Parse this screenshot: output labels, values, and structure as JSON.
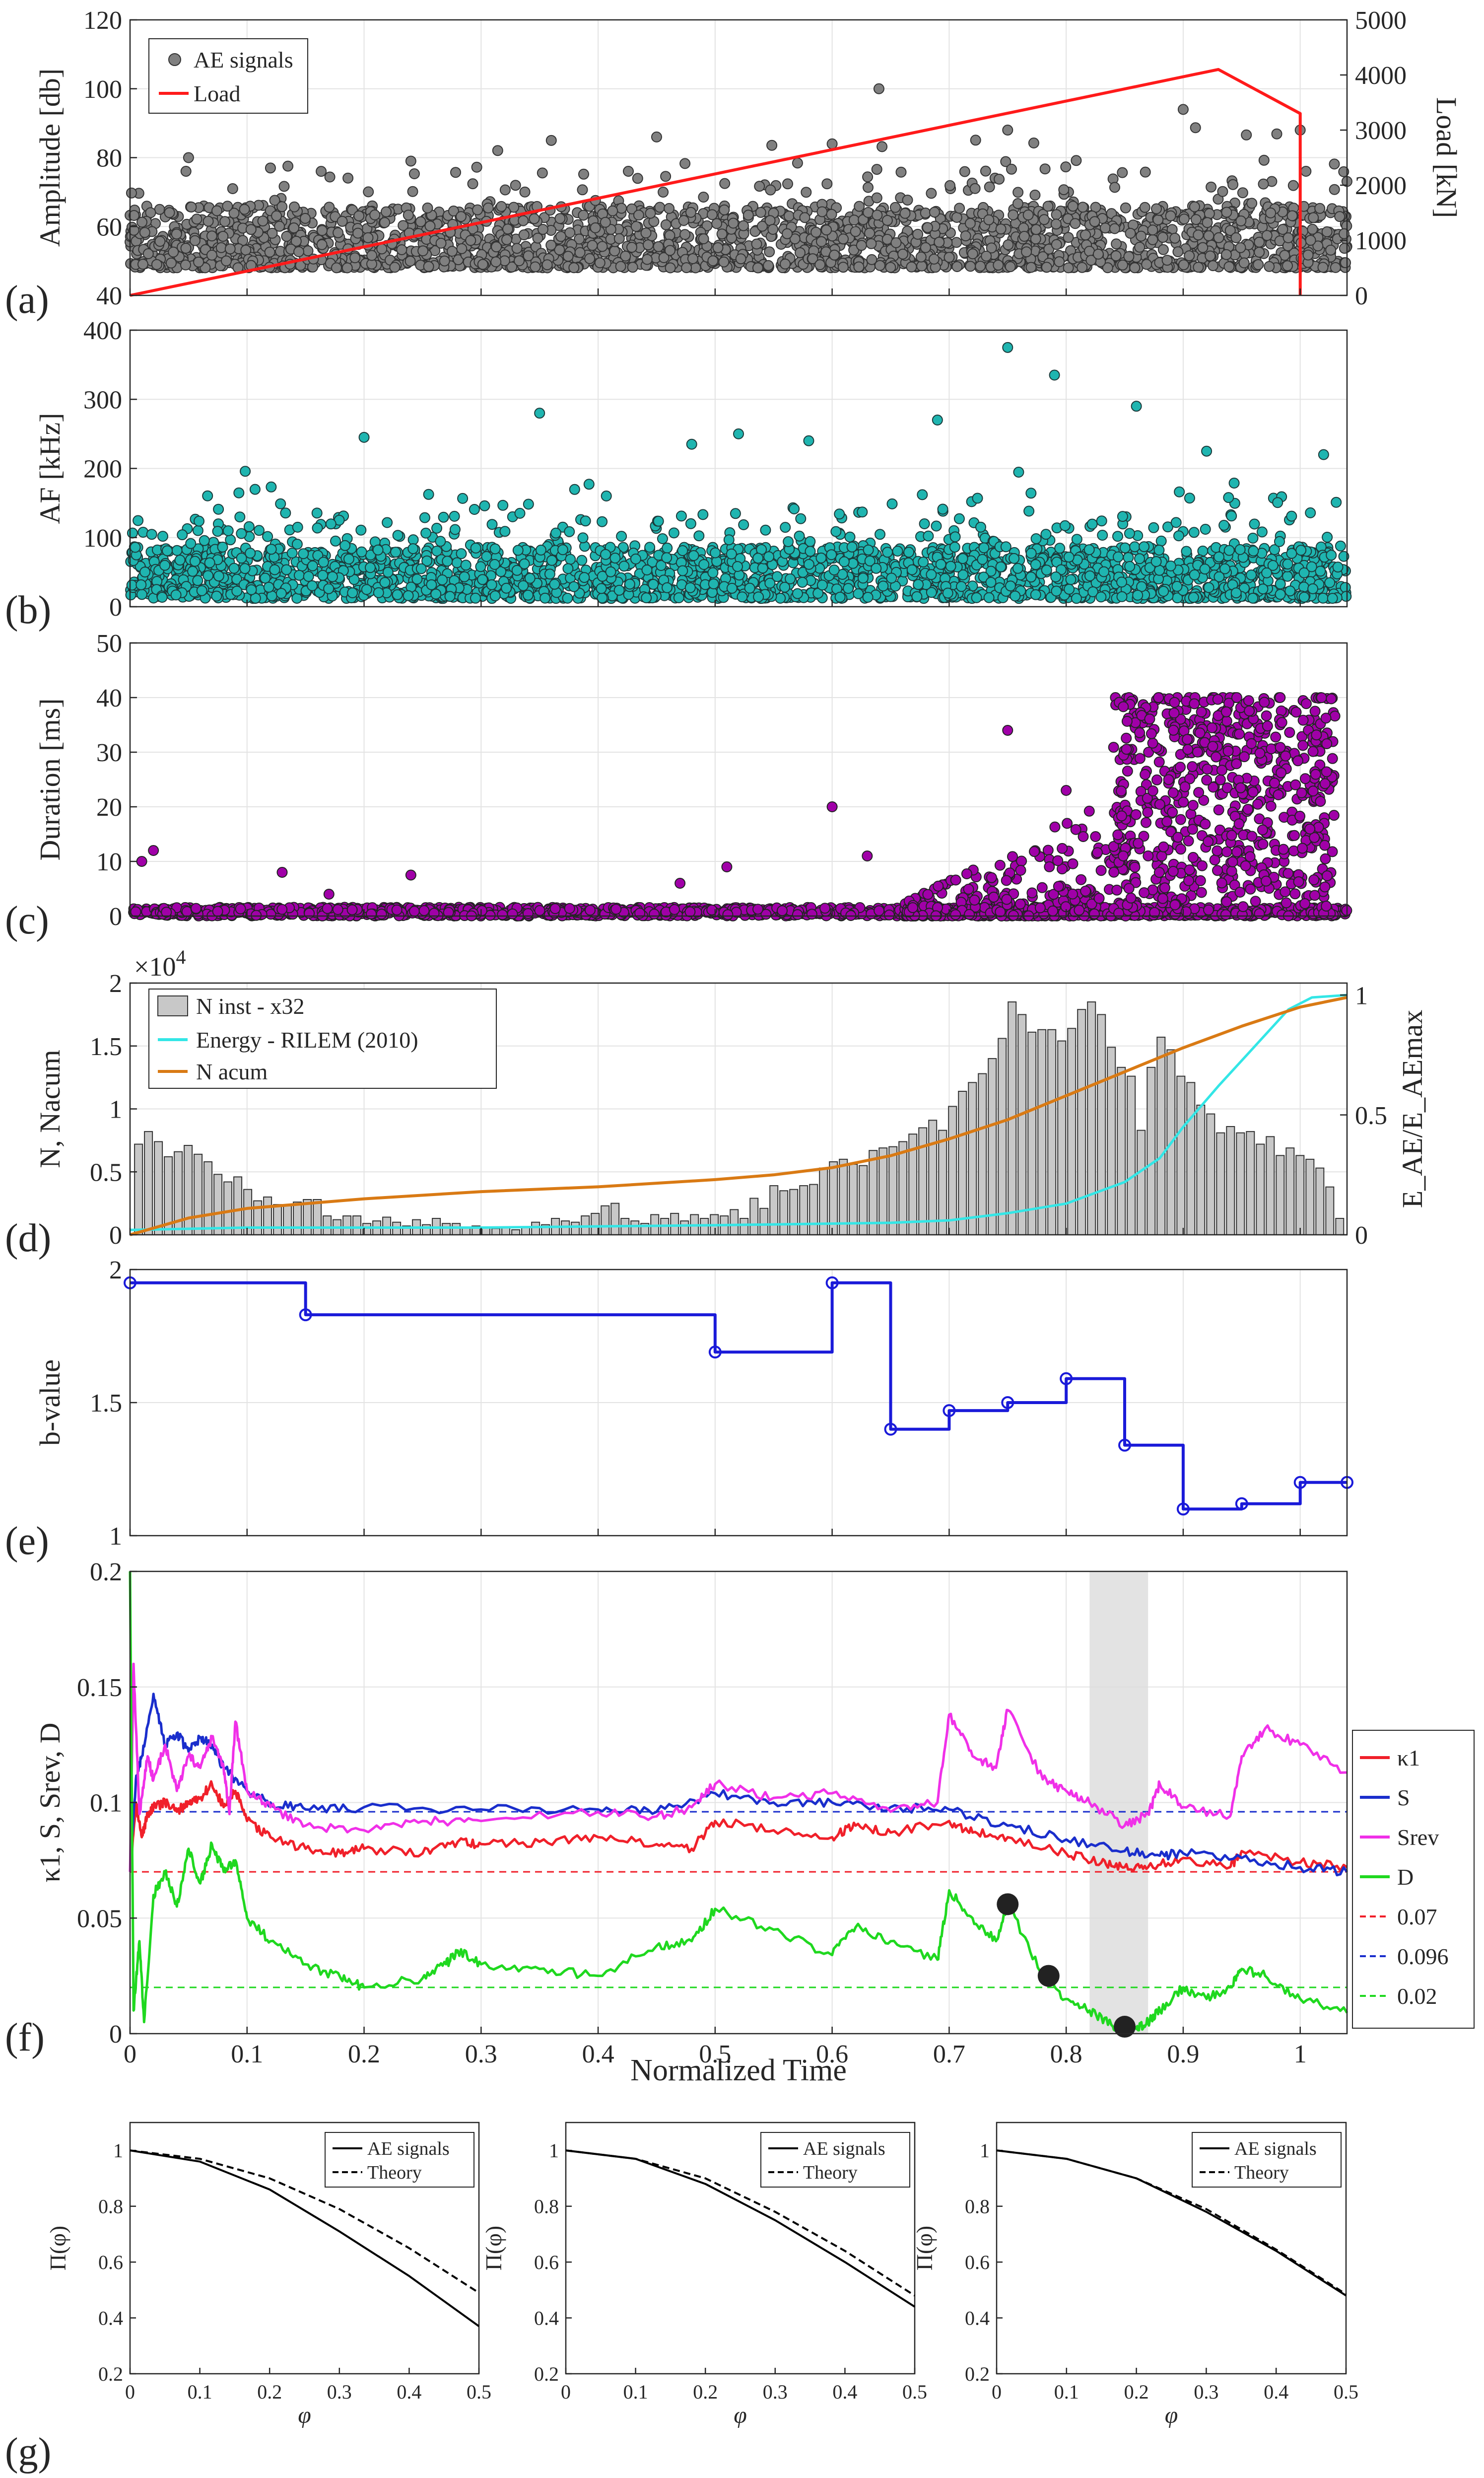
{
  "colors": {
    "ae_signals": "#808080",
    "af": "#1fb5b0",
    "duration": "#a000a8",
    "load": "#ff1a1a",
    "bars": "#c8c8c8",
    "energy": "#33e6e6",
    "nacum": "#d97a14",
    "bvalue": "#1a1ad9",
    "k1": "#f0202a",
    "S": "#1a2ecc",
    "Srev": "#f030e8",
    "D": "#1fd81f",
    "shade": "#d9d9d9",
    "marker": "#222222"
  },
  "chart_data": [
    {
      "id": "a",
      "type": "scatter",
      "panel_label": "(a)",
      "ylabel": "Amplitude [db]",
      "ylabel_right": "Load [kN]",
      "xlim": [
        0,
        1.04
      ],
      "ylim": [
        40,
        120
      ],
      "ylim_right": [
        0,
        5000
      ],
      "yticks": [
        "40",
        "60",
        "80",
        "100",
        "120"
      ],
      "yticks_right": [
        "0",
        "1000",
        "2000",
        "3000",
        "4000",
        "5000"
      ],
      "legend": [
        "AE signals",
        "Load"
      ],
      "series": [
        {
          "name": "AE signals",
          "distribution": {
            "baseline": [
              48,
              62
            ],
            "outliers_max": 100
          }
        },
        {
          "name": "Load",
          "axis": "right",
          "x": [
            0,
            0.93,
            1.0,
            1.0
          ],
          "y": [
            0,
            4100,
            3300,
            0
          ]
        }
      ]
    },
    {
      "id": "b",
      "type": "scatter",
      "panel_label": "(b)",
      "ylabel": "AF [kHz]",
      "xlim": [
        0,
        1.04
      ],
      "ylim": [
        0,
        400
      ],
      "yticks": [
        "0",
        "100",
        "200",
        "300",
        "400"
      ],
      "series": [
        {
          "name": "AF",
          "distribution": {
            "baseline": [
              10,
              90
            ],
            "outliers_max": 375
          }
        }
      ]
    },
    {
      "id": "c",
      "type": "scatter",
      "panel_label": "(c)",
      "ylabel": "Duration [ms]",
      "xlim": [
        0,
        1.04
      ],
      "ylim": [
        0,
        50
      ],
      "yticks": [
        "0",
        "10",
        "20",
        "30",
        "40",
        "50"
      ],
      "series": [
        {
          "name": "Duration",
          "distribution": {
            "baseline": [
              0,
              2
            ],
            "cluster_start": 0.67,
            "dense_start": 0.85,
            "max": 40
          }
        }
      ]
    },
    {
      "id": "d",
      "type": "bar",
      "panel_label": "(d)",
      "ylabel": "N, Nacum",
      "ylabel_right": "E_AE/E_AEmax",
      "multiplier": "×10",
      "multiplier_exp": "4",
      "xlim": [
        0,
        1.04
      ],
      "ylim": [
        0,
        20000
      ],
      "ylim_right": [
        0,
        1.05
      ],
      "yticks": [
        "0",
        "0.5",
        "1",
        "1.5",
        "2"
      ],
      "yticks_right": [
        "0",
        "0.5",
        "1"
      ],
      "legend": [
        "N inst - x32",
        "Energy - RILEM (2010)",
        "N acum"
      ],
      "bars": [
        7200,
        8200,
        7400,
        6200,
        6600,
        7100,
        6400,
        5800,
        4800,
        4200,
        4600,
        3600,
        2700,
        3000,
        2400,
        2300,
        2600,
        2800,
        2800,
        1500,
        1200,
        1500,
        1500,
        900,
        1100,
        1400,
        1000,
        700,
        1200,
        800,
        1300,
        900,
        900,
        600,
        700,
        600,
        500,
        600,
        400,
        600,
        1000,
        800,
        1300,
        1100,
        1000,
        1500,
        1700,
        2300,
        2500,
        1300,
        1100,
        900,
        1600,
        1300,
        1700,
        1100,
        1600,
        1300,
        1600,
        1500,
        2000,
        1300,
        2900,
        2100,
        3900,
        3500,
        3600,
        3900,
        4000,
        5300,
        5800,
        6000,
        5600,
        5500,
        6700,
        6900,
        7000,
        7400,
        8000,
        8500,
        9100,
        8300,
        10200,
        11400,
        12100,
        12800,
        14000,
        15600,
        18500,
        17500,
        16100,
        16300,
        16300,
        15400,
        16400,
        17900,
        18500,
        17500,
        14900,
        13300,
        12600,
        8300,
        13300,
        15700,
        14700,
        12600,
        12100,
        10300,
        9600,
        8100,
        8600,
        8100,
        8200,
        7200,
        7800,
        6300,
        6900,
        6300,
        6000,
        5300,
        3800,
        1300
      ],
      "series": [
        {
          "name": "Energy - RILEM (2010)",
          "axis": "right",
          "x": [
            0,
            0.1,
            0.3,
            0.5,
            0.65,
            0.7,
            0.75,
            0.8,
            0.85,
            0.88,
            0.9,
            0.93,
            0.96,
            0.99,
            1.01,
            1.04
          ],
          "y": [
            0.02,
            0.03,
            0.03,
            0.04,
            0.05,
            0.06,
            0.09,
            0.13,
            0.22,
            0.32,
            0.45,
            0.62,
            0.78,
            0.94,
            0.99,
            1.0
          ]
        },
        {
          "name": "N acum",
          "axis": "right",
          "x": [
            0,
            0.05,
            0.1,
            0.2,
            0.3,
            0.4,
            0.5,
            0.55,
            0.6,
            0.65,
            0.7,
            0.75,
            0.8,
            0.85,
            0.9,
            0.95,
            1.0,
            1.04
          ],
          "y": [
            0,
            0.07,
            0.11,
            0.15,
            0.18,
            0.2,
            0.23,
            0.25,
            0.28,
            0.33,
            0.4,
            0.48,
            0.58,
            0.68,
            0.78,
            0.87,
            0.95,
            0.99
          ]
        }
      ]
    },
    {
      "id": "e",
      "type": "line",
      "panel_label": "(e)",
      "ylabel": "b-value",
      "xlim": [
        0,
        1.04
      ],
      "ylim": [
        1,
        2
      ],
      "yticks": [
        "1",
        "1.5",
        "2"
      ],
      "series": [
        {
          "name": "b-value",
          "step": "pre",
          "x": [
            0,
            0.15,
            0.5,
            0.6,
            0.65,
            0.7,
            0.75,
            0.8,
            0.85,
            0.9,
            0.95,
            1.0,
            1.04
          ],
          "y": [
            1.95,
            1.83,
            1.69,
            1.95,
            1.4,
            1.47,
            1.5,
            1.59,
            1.34,
            1.1,
            1.12,
            1.2,
            1.2
          ]
        }
      ]
    },
    {
      "id": "f",
      "type": "line",
      "panel_label": "(f)",
      "ylabel": "κ1, S, Srev, D",
      "xlabel": "Normalized Time",
      "xlim": [
        0,
        1.04
      ],
      "ylim": [
        0,
        0.2
      ],
      "xticks": [
        "0",
        "0.1",
        "0.2",
        "0.3",
        "0.4",
        "0.5",
        "0.6",
        "0.7",
        "0.8",
        "0.9",
        "1"
      ],
      "yticks": [
        "0",
        "0.05",
        "0.1",
        "0.15",
        "0.2"
      ],
      "legend": [
        "κ1",
        "S",
        "Srev",
        "D",
        "0.07",
        "0.096",
        "0.02"
      ],
      "shaded_region": [
        0.82,
        0.87
      ],
      "thresholds": {
        "k1": 0.07,
        "S": 0.096,
        "D": 0.02
      },
      "series": [
        {
          "name": "κ1",
          "x": [
            0,
            0.005,
            0.01,
            0.015,
            0.02,
            0.03,
            0.04,
            0.05,
            0.06,
            0.07,
            0.08,
            0.09,
            0.1,
            0.12,
            0.15,
            0.18,
            0.2,
            0.25,
            0.28,
            0.3,
            0.35,
            0.4,
            0.45,
            0.48,
            0.5,
            0.55,
            0.6,
            0.62,
            0.65,
            0.7,
            0.72,
            0.75,
            0.8,
            0.83,
            0.85,
            0.87,
            0.9,
            0.94,
            0.95,
            1.0,
            1.04
          ],
          "y": [
            0.07,
            0.1,
            0.085,
            0.095,
            0.098,
            0.1,
            0.096,
            0.1,
            0.102,
            0.108,
            0.098,
            0.105,
            0.092,
            0.085,
            0.08,
            0.078,
            0.08,
            0.078,
            0.083,
            0.082,
            0.083,
            0.085,
            0.082,
            0.08,
            0.092,
            0.088,
            0.085,
            0.09,
            0.087,
            0.092,
            0.087,
            0.085,
            0.078,
            0.074,
            0.072,
            0.072,
            0.076,
            0.072,
            0.079,
            0.074,
            0.072
          ]
        },
        {
          "name": "S",
          "x": [
            0,
            0.005,
            0.01,
            0.02,
            0.03,
            0.04,
            0.05,
            0.06,
            0.07,
            0.08,
            0.1,
            0.12,
            0.15,
            0.2,
            0.3,
            0.4,
            0.45,
            0.5,
            0.55,
            0.6,
            0.65,
            0.7,
            0.75,
            0.8,
            0.85,
            0.88,
            0.9,
            0.95,
            1.0,
            1.04
          ],
          "y": [
            0.07,
            0.11,
            0.12,
            0.147,
            0.125,
            0.13,
            0.122,
            0.128,
            0.125,
            0.115,
            0.105,
            0.1,
            0.097,
            0.098,
            0.097,
            0.097,
            0.096,
            0.104,
            0.1,
            0.1,
            0.098,
            0.097,
            0.09,
            0.084,
            0.079,
            0.077,
            0.078,
            0.076,
            0.072,
            0.07
          ]
        },
        {
          "name": "Srev",
          "x": [
            0,
            0.003,
            0.008,
            0.015,
            0.02,
            0.03,
            0.04,
            0.05,
            0.06,
            0.07,
            0.08,
            0.085,
            0.09,
            0.1,
            0.12,
            0.15,
            0.2,
            0.25,
            0.3,
            0.4,
            0.45,
            0.48,
            0.5,
            0.55,
            0.6,
            0.65,
            0.69,
            0.7,
            0.72,
            0.74,
            0.75,
            0.78,
            0.8,
            0.82,
            0.85,
            0.87,
            0.88,
            0.9,
            0.94,
            0.95,
            0.97,
            1.0,
            1.04
          ],
          "y": [
            0.07,
            0.16,
            0.095,
            0.12,
            0.11,
            0.125,
            0.105,
            0.12,
            0.115,
            0.128,
            0.115,
            0.095,
            0.135,
            0.105,
            0.098,
            0.09,
            0.088,
            0.092,
            0.092,
            0.096,
            0.094,
            0.098,
            0.108,
            0.102,
            0.104,
            0.096,
            0.1,
            0.138,
            0.12,
            0.115,
            0.14,
            0.11,
            0.105,
            0.1,
            0.09,
            0.095,
            0.108,
            0.098,
            0.094,
            0.12,
            0.132,
            0.125,
            0.113
          ]
        },
        {
          "name": "D",
          "x": [
            0,
            0.003,
            0.008,
            0.012,
            0.02,
            0.03,
            0.04,
            0.05,
            0.06,
            0.07,
            0.08,
            0.09,
            0.1,
            0.12,
            0.15,
            0.18,
            0.2,
            0.25,
            0.27,
            0.28,
            0.3,
            0.35,
            0.4,
            0.45,
            0.48,
            0.5,
            0.55,
            0.6,
            0.62,
            0.65,
            0.69,
            0.7,
            0.72,
            0.74,
            0.75,
            0.78,
            0.8,
            0.82,
            0.84,
            0.85,
            0.86,
            0.87,
            0.88,
            0.9,
            0.92,
            0.94,
            0.95,
            0.97,
            1.0,
            1.04
          ],
          "y": [
            0.2,
            0.01,
            0.04,
            0.005,
            0.06,
            0.07,
            0.055,
            0.08,
            0.065,
            0.082,
            0.07,
            0.075,
            0.05,
            0.04,
            0.03,
            0.024,
            0.02,
            0.024,
            0.03,
            0.036,
            0.03,
            0.028,
            0.025,
            0.038,
            0.04,
            0.054,
            0.045,
            0.034,
            0.046,
            0.04,
            0.032,
            0.062,
            0.05,
            0.04,
            0.056,
            0.025,
            0.015,
            0.01,
            0.003,
            0.002,
            0.002,
            0.005,
            0.01,
            0.02,
            0.015,
            0.02,
            0.028,
            0.025,
            0.015,
            0.009
          ]
        }
      ],
      "markers": {
        "x": [
          0.75,
          0.785,
          0.85
        ],
        "y": [
          0.056,
          0.025,
          0.003
        ]
      }
    },
    {
      "id": "g1",
      "type": "line",
      "panel_label": "(g)",
      "ylabel": "Π(φ)",
      "xlabel": "φ",
      "xlim": [
        0,
        0.5
      ],
      "ylim": [
        0.2,
        1.1
      ],
      "xticks": [
        "0",
        "0.1",
        "0.2",
        "0.3",
        "0.4",
        "0.5"
      ],
      "yticks": [
        "0.2",
        "0.4",
        "0.6",
        "0.8",
        "1"
      ],
      "legend": [
        "AE signals",
        "Theory"
      ],
      "series": [
        {
          "name": "AE signals",
          "x": [
            0,
            0.1,
            0.2,
            0.3,
            0.4,
            0.5
          ],
          "y": [
            1.0,
            0.96,
            0.86,
            0.71,
            0.55,
            0.37
          ]
        },
        {
          "name": "Theory",
          "x": [
            0,
            0.1,
            0.2,
            0.3,
            0.4,
            0.5
          ],
          "y": [
            1.0,
            0.97,
            0.9,
            0.79,
            0.65,
            0.49
          ]
        }
      ]
    },
    {
      "id": "g2",
      "type": "line",
      "ylabel": "Π(φ)",
      "xlabel": "φ",
      "xlim": [
        0,
        0.5
      ],
      "ylim": [
        0.2,
        1.1
      ],
      "xticks": [
        "0",
        "0.1",
        "0.2",
        "0.3",
        "0.4",
        "0.5"
      ],
      "yticks": [
        "0.2",
        "0.4",
        "0.6",
        "0.8",
        "1"
      ],
      "legend": [
        "AE signals",
        "Theory"
      ],
      "series": [
        {
          "name": "AE signals",
          "x": [
            0,
            0.1,
            0.2,
            0.3,
            0.4,
            0.5
          ],
          "y": [
            1.0,
            0.97,
            0.88,
            0.75,
            0.6,
            0.44
          ]
        },
        {
          "name": "Theory",
          "x": [
            0,
            0.1,
            0.2,
            0.3,
            0.4,
            0.5
          ],
          "y": [
            1.0,
            0.97,
            0.9,
            0.78,
            0.64,
            0.48
          ]
        }
      ]
    },
    {
      "id": "g3",
      "type": "line",
      "ylabel": "Π(φ)",
      "xlabel": "φ",
      "xlim": [
        0,
        0.5
      ],
      "ylim": [
        0.2,
        1.1
      ],
      "xticks": [
        "0",
        "0.1",
        "0.2",
        "0.3",
        "0.4",
        "0.5"
      ],
      "yticks": [
        "0.2",
        "0.4",
        "0.6",
        "0.8",
        "1"
      ],
      "legend": [
        "AE signals",
        "Theory"
      ],
      "series": [
        {
          "name": "AE signals",
          "x": [
            0,
            0.1,
            0.2,
            0.3,
            0.4,
            0.5
          ],
          "y": [
            1.0,
            0.97,
            0.9,
            0.78,
            0.64,
            0.48
          ]
        },
        {
          "name": "Theory",
          "x": [
            0,
            0.1,
            0.2,
            0.3,
            0.4,
            0.5
          ],
          "y": [
            1.0,
            0.97,
            0.9,
            0.79,
            0.645,
            0.485
          ]
        }
      ]
    }
  ]
}
